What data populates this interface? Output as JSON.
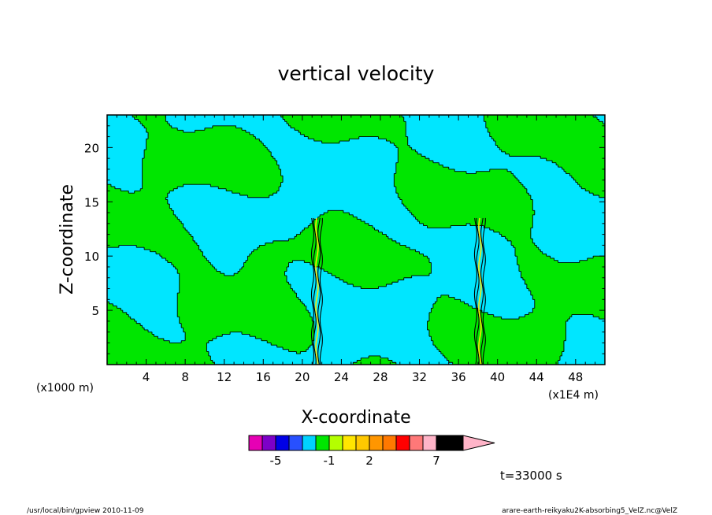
{
  "chart_data": {
    "type": "heatmap",
    "title": "vertical velocity",
    "xlabel": "X-coordinate",
    "ylabel": "Z-coordinate",
    "x_unit_left": "(x1000 m)",
    "x_unit_right": "(x1E4 m)",
    "xlim": [
      0,
      51
    ],
    "ylim": [
      0,
      23
    ],
    "x_ticks": [
      4,
      8,
      12,
      16,
      20,
      24,
      28,
      32,
      36,
      40,
      44,
      48
    ],
    "y_ticks": [
      5,
      10,
      15,
      20
    ],
    "colorbar": {
      "levels": [
        -7,
        -6,
        -5,
        -4,
        -3,
        -2,
        -1,
        0,
        1,
        2,
        3,
        4,
        5,
        6,
        7,
        9
      ],
      "labels": [
        {
          "text": "-5",
          "value": -5
        },
        {
          "text": "-1",
          "value": -1
        },
        {
          "text": "2",
          "value": 2
        },
        {
          "text": "7",
          "value": 7
        }
      ],
      "colors": [
        "#e600b4",
        "#7d00c8",
        "#0000e6",
        "#2850ff",
        "#00d2ff",
        "#00e600",
        "#b4ff00",
        "#ffe600",
        "#ffc800",
        "#ff9600",
        "#ff7800",
        "#ff0000",
        "#ff7878",
        "#ffb4c8"
      ],
      "field_colors": {
        "negative": "#00e6ff",
        "positive": "#00e600",
        "contour": "#000000"
      }
    },
    "vertical_jets_x": [
      21.5,
      38.2
    ]
  },
  "annotations": {
    "time": "t=33000 s",
    "footer_left": "/usr/local/bin/gpview   2010-11-09",
    "footer_right": "arare-earth-reikyaku2K-absorbing5_VelZ.nc@VelZ"
  }
}
